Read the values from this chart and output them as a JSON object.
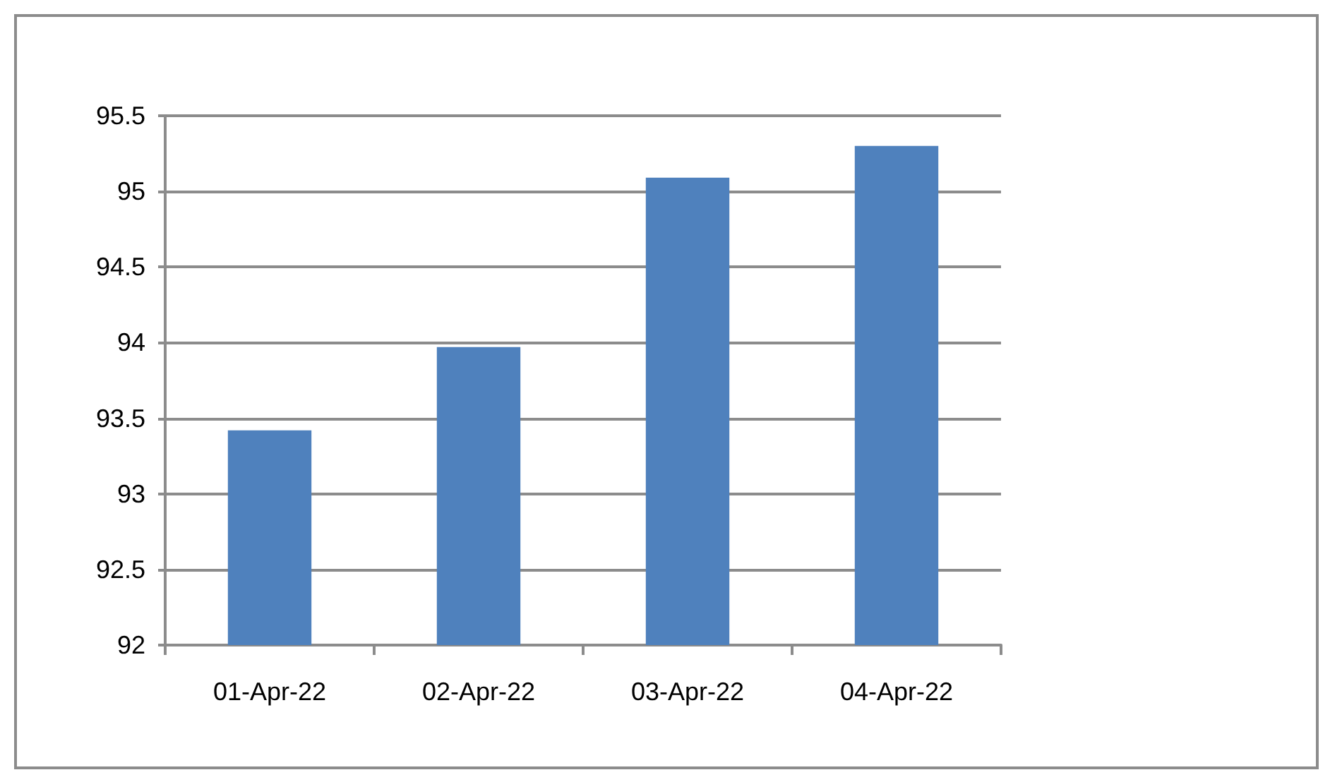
{
  "chart_data": {
    "type": "bar",
    "categories": [
      "01-Apr-22",
      "02-Apr-22",
      "03-Apr-22",
      "04-Apr-22"
    ],
    "values": [
      93.42,
      93.97,
      95.09,
      95.3
    ],
    "color": "#4f81bd",
    "ylim": [
      92,
      95.5
    ],
    "yticks": [
      92,
      92.5,
      93,
      93.5,
      94,
      94.5,
      95,
      95.5
    ],
    "grid": "y"
  }
}
